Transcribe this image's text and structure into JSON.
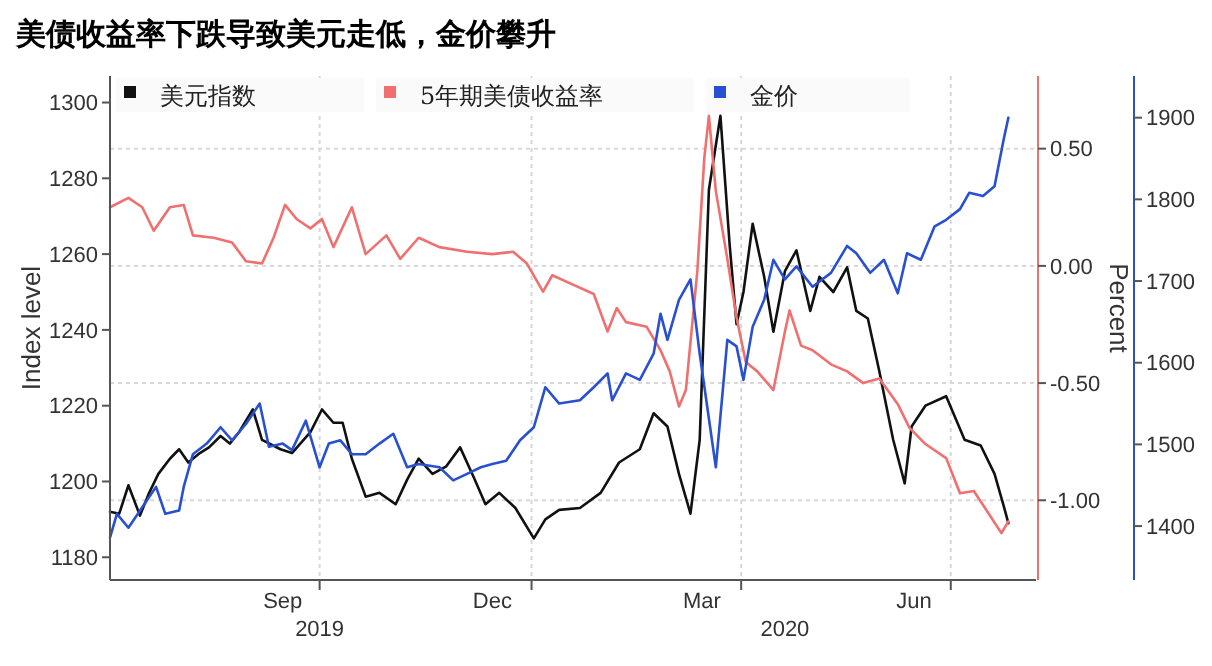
{
  "chart_data": {
    "type": "line",
    "title": "美债收益率下跌导致美元走低，金价攀升",
    "ylabel": "Index level",
    "y2label": "Percent",
    "xlim": [
      "2019-07-02",
      "2020-08-07"
    ],
    "xticks": [
      {
        "value": "2019-09-15",
        "label": "Sep"
      },
      {
        "value": "2019-10-01",
        "label": null
      },
      {
        "value": "2019-12-15",
        "label": "Dec"
      },
      {
        "value": "2020-01-01",
        "label": null
      },
      {
        "value": "2020-03-15",
        "label": "Mar"
      },
      {
        "value": "2020-04-01",
        "label": null
      },
      {
        "value": "2020-06-15",
        "label": "Jun"
      },
      {
        "value": "2020-07-01",
        "label": null
      }
    ],
    "x2lim": [
      "2019-07-02",
      "2020-08-07"
    ],
    "x2ticks": [
      {
        "value": "2019-10-01",
        "label": "2019"
      },
      {
        "value": "2020-04-20",
        "label": "2020"
      }
    ],
    "ylim": [
      1174,
      1307
    ],
    "yticks": [
      1180,
      1200,
      1220,
      1240,
      1260,
      1280,
      1300
    ],
    "y2lim": [
      -1.34,
      0.81
    ],
    "y2ticks": [
      {
        "value": -1,
        "label": "-1.00"
      },
      {
        "value": -0.5,
        "label": "-0.50"
      },
      {
        "value": 0,
        "label": "0.00"
      },
      {
        "value": 0.5,
        "label": "0.50"
      }
    ],
    "y3lim": [
      1334,
      1951
    ],
    "y3ticks": [
      1400,
      1500,
      1600,
      1700,
      1800,
      1900
    ],
    "grid": true,
    "legend": "top",
    "series": [
      {
        "name": "美元指数",
        "color": "#111111",
        "x": [
          "2019-07-02",
          "2019-07-06",
          "2019-07-10",
          "2019-07-15",
          "2019-07-19",
          "2019-07-23",
          "2019-07-28",
          "2019-08-01",
          "2019-08-05",
          "2019-08-10",
          "2019-08-14",
          "2019-08-19",
          "2019-08-23",
          "2019-08-27",
          "2019-09-02",
          "2019-09-06",
          "2019-09-14",
          "2019-09-19",
          "2019-09-27",
          "2019-10-02",
          "2019-10-07",
          "2019-10-11",
          "2019-10-15",
          "2019-10-21",
          "2019-10-27",
          "2019-11-03",
          "2019-11-08",
          "2019-11-13",
          "2019-11-19",
          "2019-11-25",
          "2019-12-01",
          "2019-12-07",
          "2019-12-12",
          "2019-12-18",
          "2019-12-25",
          "2020-01-02",
          "2020-01-07",
          "2020-01-13",
          "2020-01-22",
          "2020-01-31",
          "2020-02-08",
          "2020-02-17",
          "2020-02-23",
          "2020-02-29",
          "2020-03-05",
          "2020-03-10",
          "2020-03-14",
          "2020-03-18",
          "2020-03-23",
          "2020-03-27",
          "2020-03-30",
          "2020-04-02",
          "2020-04-06",
          "2020-04-11",
          "2020-04-15",
          "2020-04-20",
          "2020-04-25",
          "2020-05-01",
          "2020-05-05",
          "2020-05-11",
          "2020-05-17",
          "2020-05-21",
          "2020-05-26",
          "2020-05-31",
          "2020-06-06",
          "2020-06-11",
          "2020-06-14",
          "2020-06-20",
          "2020-06-29",
          "2020-07-07",
          "2020-07-14",
          "2020-07-20",
          "2020-07-24",
          "2020-07-26"
        ],
        "values": [
          1192,
          1191.5,
          1199,
          1191,
          1197,
          1202,
          1206,
          1208.5,
          1205,
          1207.5,
          1209,
          1212,
          1210,
          1213,
          1219,
          1211,
          1208.5,
          1207.5,
          1213,
          1219,
          1215.5,
          1215.5,
          1206,
          1196,
          1197,
          1194,
          1200.5,
          1206,
          1202,
          1204,
          1209,
          1201,
          1194,
          1197,
          1193,
          1185,
          1190,
          1192.5,
          1193,
          1197,
          1205,
          1208.5,
          1218,
          1214.5,
          1202,
          1191.5,
          1211,
          1277,
          1296.5,
          1262.5,
          1241.5,
          1250,
          1268,
          1254,
          1239.5,
          1255.5,
          1261,
          1245,
          1254,
          1250,
          1256.5,
          1245,
          1243,
          1229,
          1211,
          1199.5,
          1214.5,
          1220,
          1222.5,
          1211,
          1209.5,
          1202,
          1193.5,
          1189
        ]
      },
      {
        "name": "5年期美债收益率",
        "color": "#f07070",
        "axis": "y2",
        "x": [
          "2019-07-02",
          "2019-07-10",
          "2019-07-16",
          "2019-07-21",
          "2019-07-28",
          "2019-08-03",
          "2019-08-07",
          "2019-08-16",
          "2019-08-24",
          "2019-08-30",
          "2019-09-06",
          "2019-09-11",
          "2019-09-16",
          "2019-09-21",
          "2019-09-27",
          "2019-10-02",
          "2019-10-07",
          "2019-10-15",
          "2019-10-21",
          "2019-10-30",
          "2019-11-05",
          "2019-11-13",
          "2019-11-22",
          "2019-12-04",
          "2019-12-15",
          "2019-12-24",
          "2019-12-30",
          "2020-01-06",
          "2020-01-10",
          "2020-01-19",
          "2020-01-28",
          "2020-02-03",
          "2020-02-07",
          "2020-02-11",
          "2020-02-20",
          "2020-02-26",
          "2020-03-01",
          "2020-03-05",
          "2020-03-08",
          "2020-03-13",
          "2020-03-16",
          "2020-03-18",
          "2020-03-21",
          "2020-03-26",
          "2020-03-30",
          "2020-04-03",
          "2020-04-08",
          "2020-04-15",
          "2020-04-20",
          "2020-04-22",
          "2020-04-27",
          "2020-05-02",
          "2020-05-10",
          "2020-05-17",
          "2020-05-24",
          "2020-05-31",
          "2020-06-08",
          "2020-06-13",
          "2020-06-20",
          "2020-06-29",
          "2020-07-05",
          "2020-07-11",
          "2020-07-17",
          "2020-07-23",
          "2020-07-26"
        ],
        "values": [
          0.25,
          0.29,
          0.25,
          0.15,
          0.25,
          0.26,
          0.13,
          0.12,
          0.1,
          0.02,
          0.01,
          0.12,
          0.26,
          0.2,
          0.16,
          0.2,
          0.08,
          0.25,
          0.05,
          0.13,
          0.03,
          0.12,
          0.08,
          0.06,
          0.05,
          0.06,
          0.01,
          -0.11,
          -0.04,
          -0.08,
          -0.12,
          -0.28,
          -0.18,
          -0.24,
          -0.26,
          -0.36,
          -0.45,
          -0.6,
          -0.53,
          -0.02,
          0.46,
          0.64,
          0.32,
          0.03,
          -0.22,
          -0.41,
          -0.45,
          -0.53,
          -0.28,
          -0.19,
          -0.34,
          -0.36,
          -0.42,
          -0.45,
          -0.5,
          -0.48,
          -0.59,
          -0.69,
          -0.76,
          -0.82,
          -0.97,
          -0.96,
          -1.05,
          -1.14,
          -1.09
        ]
      },
      {
        "name": "金价",
        "color": "#2850d0",
        "axis": "y3",
        "x": [
          "2019-07-02",
          "2019-07-05",
          "2019-07-10",
          "2019-07-16",
          "2019-07-22",
          "2019-07-26",
          "2019-08-01",
          "2019-08-03",
          "2019-08-07",
          "2019-08-13",
          "2019-08-19",
          "2019-08-24",
          "2019-08-30",
          "2019-09-05",
          "2019-09-09",
          "2019-09-15",
          "2019-09-19",
          "2019-09-25",
          "2019-10-01",
          "2019-10-05",
          "2019-10-10",
          "2019-10-15",
          "2019-10-21",
          "2019-10-27",
          "2019-11-02",
          "2019-11-08",
          "2019-11-13",
          "2019-11-22",
          "2019-11-28",
          "2019-12-04",
          "2019-12-10",
          "2019-12-15",
          "2019-12-21",
          "2019-12-27",
          "2020-01-02",
          "2020-01-07",
          "2020-01-13",
          "2020-01-22",
          "2020-01-28",
          "2020-02-03",
          "2020-02-05",
          "2020-02-11",
          "2020-02-17",
          "2020-02-23",
          "2020-02-26",
          "2020-02-29",
          "2020-03-05",
          "2020-03-10",
          "2020-03-14",
          "2020-03-21",
          "2020-03-26",
          "2020-03-30",
          "2020-04-02",
          "2020-04-06",
          "2020-04-11",
          "2020-04-15",
          "2020-04-20",
          "2020-04-25",
          "2020-05-02",
          "2020-05-10",
          "2020-05-17",
          "2020-05-21",
          "2020-05-27",
          "2020-06-02",
          "2020-06-08",
          "2020-06-12",
          "2020-06-18",
          "2020-06-24",
          "2020-06-29",
          "2020-07-05",
          "2020-07-09",
          "2020-07-15",
          "2020-07-20",
          "2020-07-24",
          "2020-07-26"
        ],
        "values": [
          1386,
          1415,
          1398,
          1423,
          1448,
          1415,
          1419,
          1448,
          1488,
          1501,
          1521,
          1505,
          1525,
          1550,
          1497,
          1501,
          1493,
          1529,
          1472,
          1501,
          1505,
          1488,
          1488,
          1501,
          1513,
          1472,
          1476,
          1472,
          1456,
          1464,
          1472,
          1476,
          1480,
          1505,
          1521,
          1570,
          1550,
          1554,
          1570,
          1587,
          1554,
          1587,
          1579,
          1611,
          1660,
          1628,
          1677,
          1702,
          1611,
          1472,
          1628,
          1620,
          1579,
          1644,
          1677,
          1726,
          1702,
          1718,
          1693,
          1710,
          1743,
          1734,
          1710,
          1726,
          1685,
          1734,
          1726,
          1767,
          1775,
          1788,
          1808,
          1804,
          1816,
          1874,
          1900
        ]
      }
    ]
  }
}
